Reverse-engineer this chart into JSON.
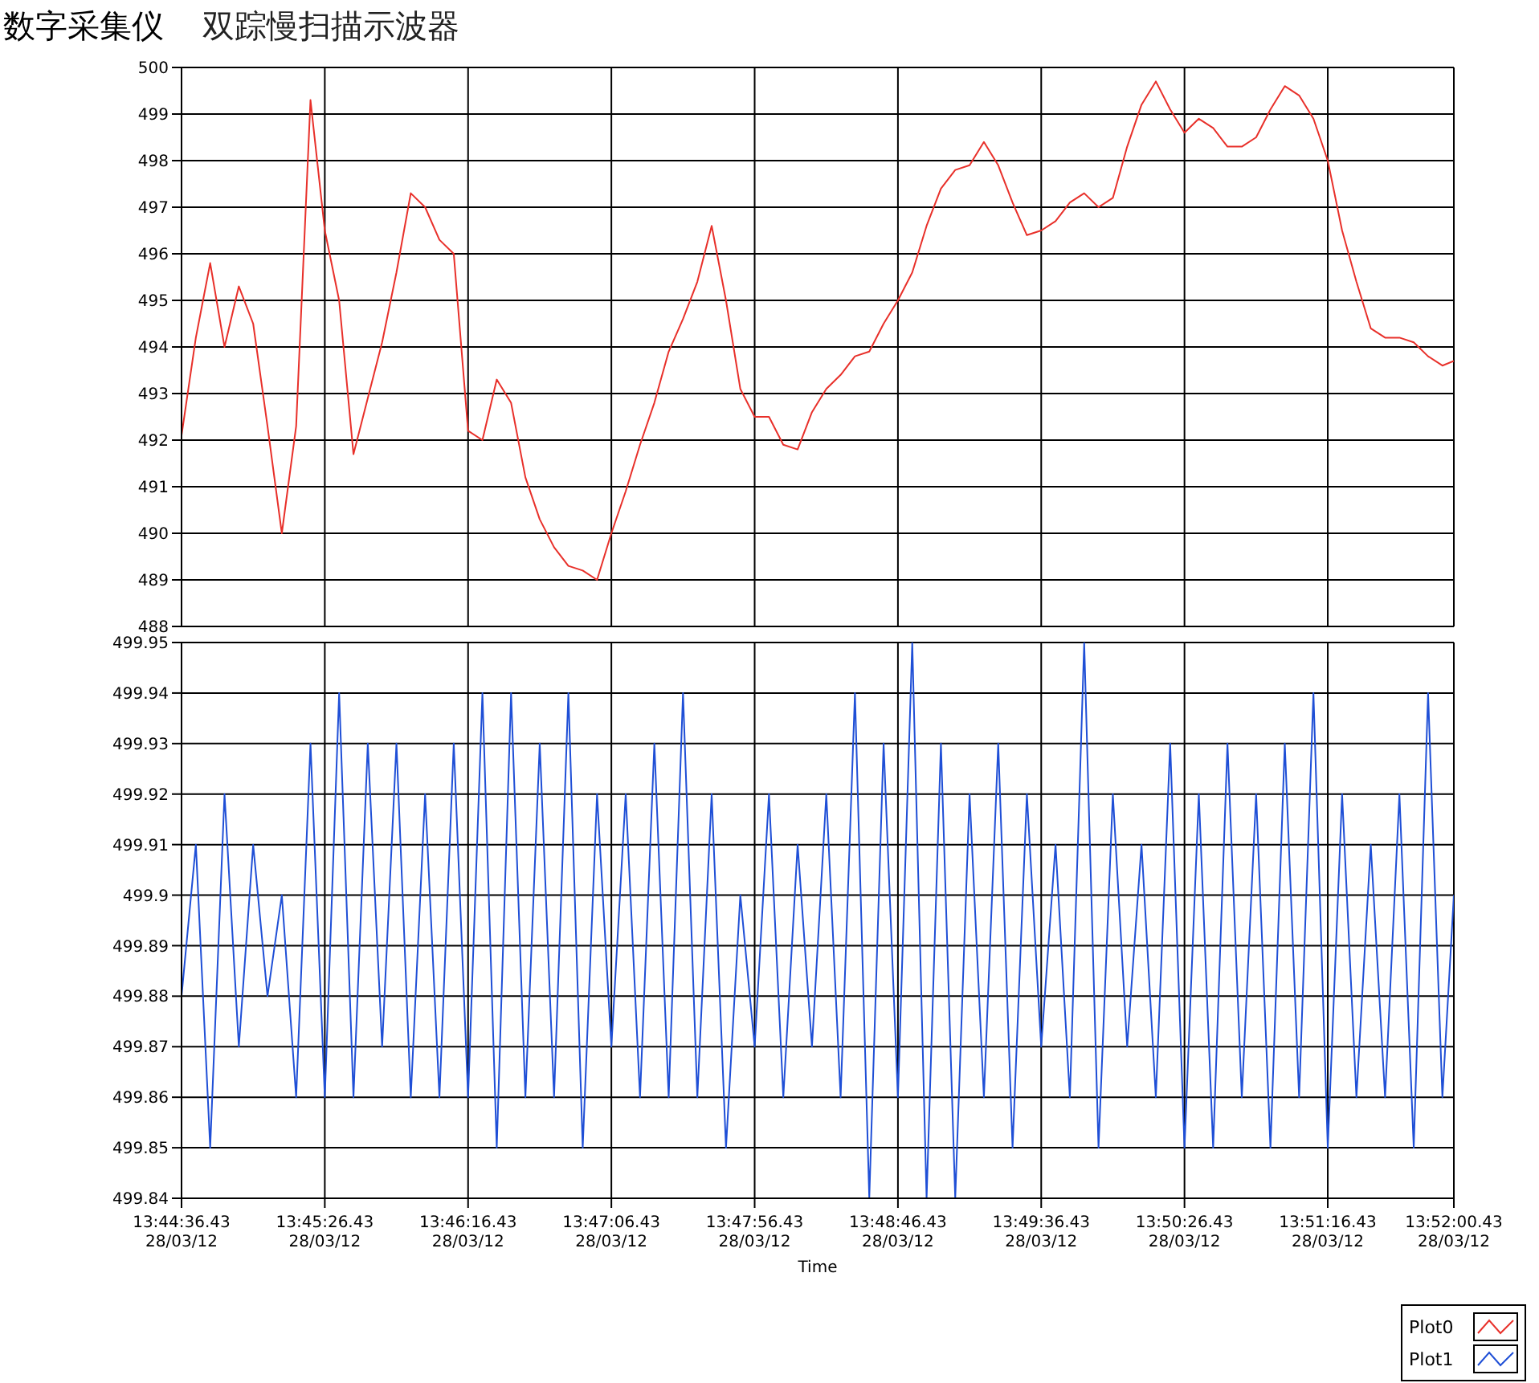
{
  "chart_data": [
    {
      "type": "line",
      "title": "数字采集仪",
      "subtitle": "双踪慢扫描示波器",
      "x": [
        "--03-28T13:44:36.43",
        "--03-28T13:44:41.43",
        "--03-28T13:44:46.43",
        "--03-28T13:44:51.43",
        "--03-28T13:44:56.43",
        "--03-28T13:45:01.43",
        "--03-28T13:45:06.43",
        "--03-28T13:45:11.43",
        "--03-28T13:45:16.43",
        "--03-28T13:45:21.43",
        "--03-28T13:45:26.43",
        "--03-28T13:45:31.43",
        "--03-28T13:45:36.43",
        "--03-28T13:45:41.43",
        "--03-28T13:45:46.43",
        "--03-28T13:45:51.43",
        "--03-28T13:45:56.43",
        "--03-28T13:46:01.43",
        "--03-28T13:46:06.43",
        "--03-28T13:46:11.43",
        "--03-28T13:46:16.43",
        "--03-28T13:46:21.43",
        "--03-28T13:46:26.43",
        "--03-28T13:46:31.43",
        "--03-28T13:46:36.43",
        "--03-28T13:46:41.43",
        "--03-28T13:46:46.43",
        "--03-28T13:46:51.43",
        "--03-28T13:46:56.43",
        "--03-28T13:47:01.43",
        "--03-28T13:47:06.43",
        "--03-28T13:47:11.43",
        "--03-28T13:47:16.43",
        "--03-28T13:47:21.43",
        "--03-28T13:47:26.43",
        "--03-28T13:47:31.43",
        "--03-28T13:47:36.43",
        "--03-28T13:47:41.43",
        "--03-28T13:47:46.43",
        "--03-28T13:47:51.43",
        "--03-28T13:47:56.43",
        "--03-28T13:48:01.43",
        "--03-28T13:48:06.43",
        "--03-28T13:48:11.43",
        "--03-28T13:48:16.43",
        "--03-28T13:48:21.43",
        "--03-28T13:48:26.43",
        "--03-28T13:48:31.43",
        "--03-28T13:48:36.43",
        "--03-28T13:48:41.43",
        "--03-28T13:48:46.43",
        "--03-28T13:48:51.43",
        "--03-28T13:48:56.43",
        "--03-28T13:49:01.43",
        "--03-28T13:49:06.43",
        "--03-28T13:49:11.43",
        "--03-28T13:49:16.43",
        "--03-28T13:49:21.43",
        "--03-28T13:49:26.43",
        "--03-28T13:49:31.43",
        "--03-28T13:49:36.43",
        "--03-28T13:49:41.43",
        "--03-28T13:49:46.43",
        "--03-28T13:49:51.43",
        "--03-28T13:49:56.43",
        "--03-28T13:50:01.43",
        "--03-28T13:50:06.43",
        "--03-28T13:50:11.43",
        "--03-28T13:50:16.43",
        "--03-28T13:50:21.43",
        "--03-28T13:50:26.43",
        "--03-28T13:50:31.43",
        "--03-28T13:50:36.43",
        "--03-28T13:50:41.43",
        "--03-28T13:50:46.43",
        "--03-28T13:50:51.43",
        "--03-28T13:50:56.43",
        "--03-28T13:51:01.43",
        "--03-28T13:51:06.43",
        "--03-28T13:51:11.43",
        "--03-28T13:51:16.43",
        "--03-28T13:51:21.43",
        "--03-28T13:51:26.43",
        "--03-28T13:51:31.43",
        "--03-28T13:51:36.43",
        "--03-28T13:51:41.43",
        "--03-28T13:51:46.43",
        "--03-28T13:51:51.43",
        "--03-28T13:51:56.43",
        "--03-28T13:52:00.43"
      ],
      "series": [
        {
          "name": "Plot0",
          "color": "#e8302a",
          "values": [
            492.1,
            494.2,
            495.8,
            494.0,
            495.3,
            494.5,
            492.3,
            490.0,
            492.3,
            499.3,
            496.5,
            495.0,
            491.7,
            492.9,
            494.1,
            495.6,
            497.3,
            497.0,
            496.3,
            496.0,
            492.2,
            492.0,
            493.3,
            492.8,
            491.2,
            490.3,
            489.7,
            489.3,
            489.2,
            489.0,
            490.0,
            490.9,
            491.9,
            492.8,
            493.9,
            494.6,
            495.4,
            496.6,
            495.0,
            493.1,
            492.5,
            492.5,
            491.9,
            491.8,
            492.6,
            493.1,
            493.4,
            493.8,
            493.9,
            494.5,
            495.0,
            495.6,
            496.6,
            497.4,
            497.8,
            497.9,
            498.4,
            497.9,
            497.1,
            496.4,
            496.5,
            496.7,
            497.1,
            497.3,
            497.0,
            497.2,
            498.3,
            499.2,
            499.7,
            499.1,
            498.6,
            498.9,
            498.7,
            498.3,
            498.3,
            498.5,
            499.1,
            499.6,
            499.4,
            498.9,
            498.0,
            496.5,
            495.4,
            494.4,
            494.2,
            494.2,
            494.1,
            493.8,
            493.6,
            493.7
          ]
        }
      ],
      "xlim": [
        "--03-28T13:44:36.43",
        "--03-28T13:52:00.43"
      ],
      "xticks": [
        {
          "value": "--03-28T13:44:36.43",
          "label": "13:44:36.43\n28/03/12"
        },
        {
          "value": "--03-28T13:45:26.43",
          "label": "13:45:26.43\n28/03/12"
        },
        {
          "value": "--03-28T13:46:16.43",
          "label": "13:46:16.43\n28/03/12"
        },
        {
          "value": "--03-28T13:47:06.43",
          "label": "13:47:06.43\n28/03/12"
        },
        {
          "value": "--03-28T13:47:56.43",
          "label": "13:47:56.43\n28/03/12"
        },
        {
          "value": "--03-28T13:48:46.43",
          "label": "13:48:46.43\n28/03/12"
        },
        {
          "value": "--03-28T13:49:36.43",
          "label": "13:49:36.43\n28/03/12"
        },
        {
          "value": "--03-28T13:50:26.43",
          "label": "13:50:26.43\n28/03/12"
        },
        {
          "value": "--03-28T13:51:16.43",
          "label": "13:51:16.43\n28/03/12"
        },
        {
          "value": "--03-28T13:52:00.43",
          "label": "13:52:00.43\n28/03/12"
        }
      ],
      "ylim": [
        488,
        500
      ],
      "yticks": [
        488,
        489,
        490,
        491,
        492,
        493,
        494,
        495,
        496,
        497,
        498,
        499,
        500
      ],
      "grid": true,
      "tick_labels": "y",
      "legend": "bottom right",
      "marker": "none",
      "line_style": "solid"
    },
    {
      "type": "line",
      "xlabel": "Time",
      "x": [
        "--03-28T13:44:36.43",
        "--03-28T13:44:41.43",
        "--03-28T13:44:46.43",
        "--03-28T13:44:51.43",
        "--03-28T13:44:56.43",
        "--03-28T13:45:01.43",
        "--03-28T13:45:06.43",
        "--03-28T13:45:11.43",
        "--03-28T13:45:16.43",
        "--03-28T13:45:21.43",
        "--03-28T13:45:26.43",
        "--03-28T13:45:31.43",
        "--03-28T13:45:36.43",
        "--03-28T13:45:41.43",
        "--03-28T13:45:46.43",
        "--03-28T13:45:51.43",
        "--03-28T13:45:56.43",
        "--03-28T13:46:01.43",
        "--03-28T13:46:06.43",
        "--03-28T13:46:11.43",
        "--03-28T13:46:16.43",
        "--03-28T13:46:21.43",
        "--03-28T13:46:26.43",
        "--03-28T13:46:31.43",
        "--03-28T13:46:36.43",
        "--03-28T13:46:41.43",
        "--03-28T13:46:46.43",
        "--03-28T13:46:51.43",
        "--03-28T13:46:56.43",
        "--03-28T13:47:01.43",
        "--03-28T13:47:06.43",
        "--03-28T13:47:11.43",
        "--03-28T13:47:16.43",
        "--03-28T13:47:21.43",
        "--03-28T13:47:26.43",
        "--03-28T13:47:31.43",
        "--03-28T13:47:36.43",
        "--03-28T13:47:41.43",
        "--03-28T13:47:46.43",
        "--03-28T13:47:51.43",
        "--03-28T13:47:56.43",
        "--03-28T13:48:01.43",
        "--03-28T13:48:06.43",
        "--03-28T13:48:11.43",
        "--03-28T13:48:16.43",
        "--03-28T13:48:21.43",
        "--03-28T13:48:26.43",
        "--03-28T13:48:31.43",
        "--03-28T13:48:36.43",
        "--03-28T13:48:41.43",
        "--03-28T13:48:46.43",
        "--03-28T13:48:51.43",
        "--03-28T13:48:56.43",
        "--03-28T13:49:01.43",
        "--03-28T13:49:06.43",
        "--03-28T13:49:11.43",
        "--03-28T13:49:16.43",
        "--03-28T13:49:21.43",
        "--03-28T13:49:26.43",
        "--03-28T13:49:31.43",
        "--03-28T13:49:36.43",
        "--03-28T13:49:41.43",
        "--03-28T13:49:46.43",
        "--03-28T13:49:51.43",
        "--03-28T13:49:56.43",
        "--03-28T13:50:01.43",
        "--03-28T13:50:06.43",
        "--03-28T13:50:11.43",
        "--03-28T13:50:16.43",
        "--03-28T13:50:21.43",
        "--03-28T13:50:26.43",
        "--03-28T13:50:31.43",
        "--03-28T13:50:36.43",
        "--03-28T13:50:41.43",
        "--03-28T13:50:46.43",
        "--03-28T13:50:51.43",
        "--03-28T13:50:56.43",
        "--03-28T13:51:01.43",
        "--03-28T13:51:06.43",
        "--03-28T13:51:11.43",
        "--03-28T13:51:16.43",
        "--03-28T13:51:21.43",
        "--03-28T13:51:26.43",
        "--03-28T13:51:31.43",
        "--03-28T13:51:36.43",
        "--03-28T13:51:41.43",
        "--03-28T13:51:46.43",
        "--03-28T13:51:51.43",
        "--03-28T13:51:56.43",
        "--03-28T13:52:00.43"
      ],
      "series": [
        {
          "name": "Plot1",
          "color": "#1f4fd6",
          "values": [
            499.88,
            499.91,
            499.85,
            499.92,
            499.87,
            499.91,
            499.88,
            499.9,
            499.86,
            499.93,
            499.86,
            499.94,
            499.86,
            499.93,
            499.87,
            499.93,
            499.86,
            499.92,
            499.86,
            499.93,
            499.86,
            499.94,
            499.85,
            499.94,
            499.86,
            499.93,
            499.86,
            499.94,
            499.85,
            499.92,
            499.87,
            499.92,
            499.86,
            499.93,
            499.86,
            499.94,
            499.86,
            499.92,
            499.85,
            499.9,
            499.87,
            499.92,
            499.86,
            499.91,
            499.87,
            499.92,
            499.86,
            499.94,
            499.84,
            499.93,
            499.86,
            499.95,
            499.84,
            499.93,
            499.84,
            499.92,
            499.86,
            499.93,
            499.85,
            499.92,
            499.87,
            499.91,
            499.86,
            499.95,
            499.85,
            499.92,
            499.87,
            499.91,
            499.86,
            499.93,
            499.85,
            499.92,
            499.85,
            499.93,
            499.86,
            499.92,
            499.85,
            499.93,
            499.86,
            499.94,
            499.85,
            499.92,
            499.86,
            499.91,
            499.86,
            499.92,
            499.85,
            499.94,
            499.86,
            499.9
          ]
        }
      ],
      "xlim": [
        "--03-28T13:44:36.43",
        "--03-28T13:52:00.43"
      ],
      "xticks": [
        {
          "value": "--03-28T13:44:36.43",
          "label": "13:44:36.43\n28/03/12"
        },
        {
          "value": "--03-28T13:45:26.43",
          "label": "13:45:26.43\n28/03/12"
        },
        {
          "value": "--03-28T13:46:16.43",
          "label": "13:46:16.43\n28/03/12"
        },
        {
          "value": "--03-28T13:47:06.43",
          "label": "13:47:06.43\n28/03/12"
        },
        {
          "value": "--03-28T13:47:56.43",
          "label": "13:47:56.43\n28/03/12"
        },
        {
          "value": "--03-28T13:48:46.43",
          "label": "13:48:46.43\n28/03/12"
        },
        {
          "value": "--03-28T13:49:36.43",
          "label": "13:49:36.43\n28/03/12"
        },
        {
          "value": "--03-28T13:50:26.43",
          "label": "13:50:26.43\n28/03/12"
        },
        {
          "value": "--03-28T13:51:16.43",
          "label": "13:51:16.43\n28/03/12"
        },
        {
          "value": "--03-28T13:52:00.43",
          "label": "13:52:00.43\n28/03/12"
        }
      ],
      "ylim": [
        499.84,
        499.95
      ],
      "yticks": [
        499.84,
        499.85,
        499.86,
        499.87,
        499.88,
        499.89,
        499.9,
        499.91,
        499.92,
        499.93,
        499.94,
        499.95
      ],
      "grid": true,
      "legend": "bottom right",
      "marker": "none",
      "line_style": "solid"
    }
  ]
}
